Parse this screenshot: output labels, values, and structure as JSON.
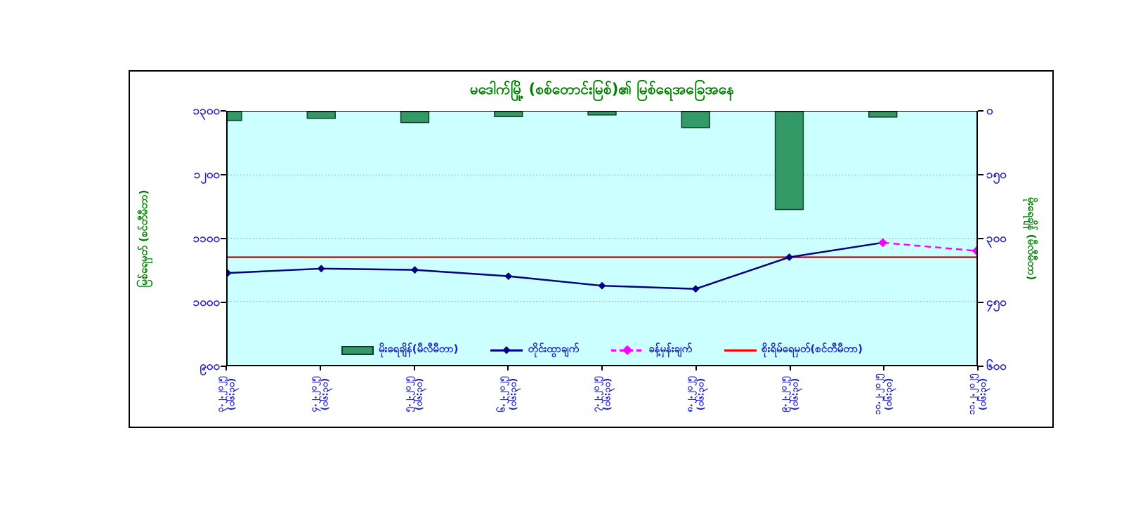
{
  "chart_data": {
    "type": "combo",
    "title": "မဒေါက်မြို့ (စစ်တောင်းမြစ်)၏ မြစ်ရေအခြေအနေ",
    "categories": [
      {
        "date": "၃.၂.၂၀၂၅",
        "time": "(၀၆:၃၀)"
      },
      {
        "date": "၄.၂.၂၀၂၅",
        "time": "(၀၆:၃၀)"
      },
      {
        "date": "၅.၂.၂၀၂၅",
        "time": "(၀၆:၃၀)"
      },
      {
        "date": "၆.၂.၂၀၂၅",
        "time": "(၀၆:၃၀)"
      },
      {
        "date": "၇.၂.၂၀၂၅",
        "time": "(၀၆:၃၀)"
      },
      {
        "date": "၈.၂.၂၀၂၅",
        "time": "(၀၆:၃၀)"
      },
      {
        "date": "၉.၂.၂၀၂၅",
        "time": "(၀၆:၃၀)"
      },
      {
        "date": "၁၀.၂.၂၀၂၅",
        "time": "(၀၆:၃၀)"
      },
      {
        "date": "၁၁.၂.၂၀၂၅",
        "time": "(၀၆:၃၀)"
      }
    ],
    "left_axis": {
      "title": "မြစ်ရေမှတ် (စင်တီမီတာ)",
      "min": 900,
      "max": 1300,
      "step": 100,
      "ticks": [
        "၁၃၀၀",
        "၁၂၀၀",
        "၁၁၀၀",
        "၁၀၀၀",
        "၉၀၀"
      ]
    },
    "right_axis": {
      "title": "မိုးရေချိန် (မီလီမီတာ)",
      "min": 0,
      "max": 600,
      "step": 150,
      "inverted": true,
      "ticks": [
        "၀",
        "၁၅၀",
        "၃၀၀",
        "၄၅၀",
        "၆၀၀"
      ]
    },
    "series": [
      {
        "name": "မိုးရေချိန်(မီလီမီတာ)",
        "type": "bar",
        "axis": "right",
        "values": [
          21,
          16,
          26,
          12,
          8,
          38,
          232,
          13,
          0
        ]
      },
      {
        "name": "တိုင်းထွာချက်",
        "type": "line",
        "axis": "left",
        "marker": "diamond",
        "values": [
          1045,
          1052,
          1050,
          1040,
          1025,
          1020,
          1070,
          1093,
          null
        ]
      },
      {
        "name": "ခန့်မှန်းချက်",
        "type": "line",
        "style": "dashed",
        "axis": "left",
        "marker": "diamond",
        "values": [
          null,
          null,
          null,
          null,
          null,
          null,
          null,
          1093,
          1080
        ]
      },
      {
        "name": "စိုးရိမ်ရေမှတ်(စင်တီမီတာ)",
        "type": "hline",
        "axis": "left",
        "value": 1070
      }
    ],
    "legend_position": "bottom-inside",
    "grid": "horizontal-dotted",
    "colors": {
      "bar": "#339966",
      "bar_border": "#0e3d24",
      "measured": "#000080",
      "forecast": "#ff00ff",
      "danger": "#ff0000",
      "plot_bg": "#ccffff",
      "axis_text": "#1f1fcc",
      "title_text": "#008000",
      "grid_line": "#999999"
    }
  }
}
